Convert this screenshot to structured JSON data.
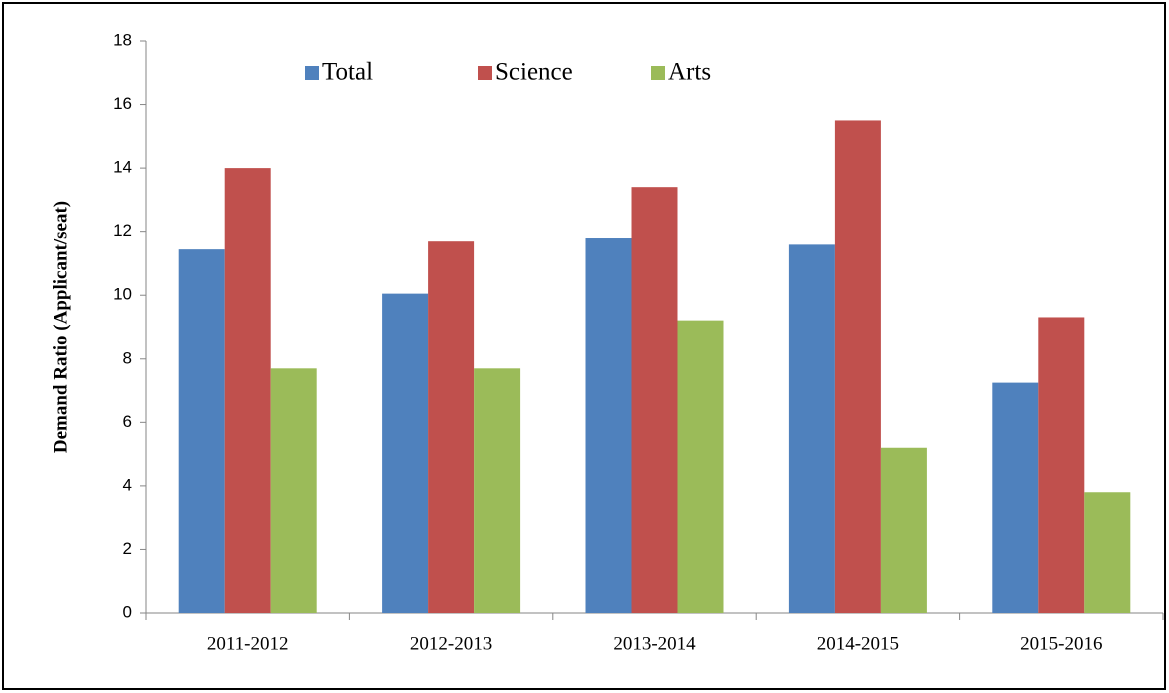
{
  "chart_data": {
    "type": "bar",
    "y_label": "Demand Ratio (Applicant/seat)",
    "categories": [
      "2011-2012",
      "2012-2013",
      "2013-2014",
      "2014-2015",
      "2015-2016"
    ],
    "series": [
      {
        "name": "Total",
        "color": "#4f81bd",
        "values": [
          11.45,
          10.05,
          11.8,
          11.6,
          7.25
        ]
      },
      {
        "name": "Science",
        "color": "#c0504d",
        "values": [
          14.0,
          11.7,
          13.4,
          15.5,
          9.3
        ]
      },
      {
        "name": "Arts",
        "color": "#9bbb59",
        "values": [
          7.7,
          7.7,
          9.2,
          5.2,
          3.8
        ]
      }
    ],
    "ylim": [
      0,
      18
    ],
    "yticks": [
      0,
      2,
      4,
      6,
      8,
      10,
      12,
      14,
      16,
      18
    ],
    "grid": false
  }
}
